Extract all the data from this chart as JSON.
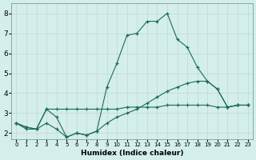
{
  "xlabel": "Humidex (Indice chaleur)",
  "bg_color": "#d4eeeb",
  "grid_color": "#c0d8d5",
  "line_color": "#1a6b5a",
  "xlim": [
    -0.5,
    23.5
  ],
  "ylim": [
    1.7,
    8.5
  ],
  "xticks": [
    0,
    1,
    2,
    3,
    4,
    5,
    6,
    7,
    8,
    9,
    10,
    11,
    12,
    13,
    14,
    15,
    16,
    17,
    18,
    19,
    20,
    21,
    22,
    23
  ],
  "yticks": [
    2,
    3,
    4,
    5,
    6,
    7,
    8
  ],
  "lines": [
    {
      "x": [
        0,
        1,
        2,
        3,
        4,
        5,
        6,
        7,
        8,
        9,
        10,
        11,
        12,
        13,
        14,
        15,
        16,
        17,
        18,
        19,
        20,
        21,
        22,
        23
      ],
      "y": [
        2.5,
        2.3,
        2.2,
        3.2,
        2.8,
        1.8,
        2.0,
        1.9,
        2.1,
        4.3,
        5.5,
        6.9,
        7.0,
        7.6,
        7.6,
        8.0,
        6.7,
        6.3,
        5.3,
        4.6,
        4.2,
        3.3,
        3.4,
        3.4
      ]
    },
    {
      "x": [
        0,
        1,
        2,
        3,
        4,
        5,
        6,
        7,
        8,
        9,
        10,
        11,
        12,
        13,
        14,
        15,
        16,
        17,
        18,
        19,
        20,
        21,
        22,
        23
      ],
      "y": [
        2.5,
        2.2,
        2.2,
        3.2,
        3.2,
        3.2,
        3.2,
        3.2,
        3.2,
        3.2,
        3.2,
        3.3,
        3.3,
        3.3,
        3.3,
        3.4,
        3.4,
        3.4,
        3.4,
        3.4,
        3.3,
        3.3,
        3.4,
        3.4
      ]
    },
    {
      "x": [
        0,
        1,
        2,
        3,
        4,
        5,
        6,
        7,
        8,
        9,
        10,
        11,
        12,
        13,
        14,
        15,
        16,
        17,
        18,
        19,
        20,
        21,
        22,
        23
      ],
      "y": [
        2.5,
        2.3,
        2.2,
        2.5,
        2.2,
        1.8,
        2.0,
        1.9,
        2.1,
        2.5,
        2.8,
        3.0,
        3.2,
        3.5,
        3.8,
        4.1,
        4.3,
        4.5,
        4.6,
        4.6,
        4.2,
        3.3,
        3.4,
        3.4
      ]
    }
  ]
}
